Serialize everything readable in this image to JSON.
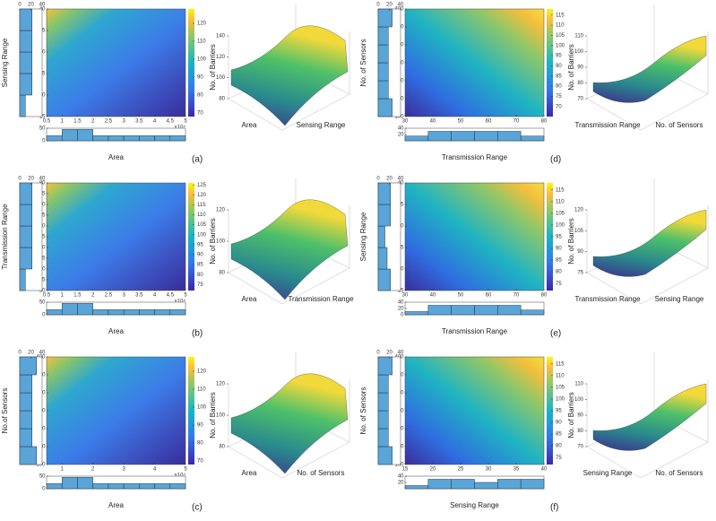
{
  "panels": [
    {
      "letter": "(a)",
      "ylabel": "Sensing Range",
      "xlabel": "Area",
      "xexp": "×10⁴",
      "mode": "tl",
      "xlim": [
        0.5,
        5
      ],
      "xticks": [
        0.5,
        1,
        1.5,
        2,
        2.5,
        3,
        3.5,
        4,
        4.5,
        5
      ],
      "ylim": [
        15,
        40
      ],
      "yticks": [
        15,
        20,
        25,
        30,
        35,
        40
      ],
      "clim": [
        68,
        128
      ],
      "cticks": [
        70,
        80,
        90,
        100,
        110,
        120
      ],
      "lh": {
        "xlim": [
          0,
          40
        ],
        "xticks": [
          0,
          20,
          40
        ],
        "values": [
          10,
          22,
          22,
          22,
          22
        ]
      },
      "bh": {
        "ylim": [
          0,
          50
        ],
        "yticks": [
          0,
          50
        ],
        "values": [
          20,
          45,
          45,
          20,
          20,
          20,
          20,
          20,
          20
        ]
      },
      "surf": {
        "zlabel": "No. of Barriers",
        "xlabel": "Area",
        "ylabel": "Sensing Range",
        "zticks": [
          80,
          100,
          120,
          140
        ]
      }
    },
    {
      "letter": "(b)",
      "ylabel": "Transmission Range",
      "xlabel": "Area",
      "xexp": "×10⁴",
      "mode": "tl",
      "xlim": [
        0.5,
        5
      ],
      "xticks": [
        0.5,
        1,
        1.5,
        2,
        2.5,
        3,
        3.5,
        4,
        4.5,
        5
      ],
      "ylim": [
        30,
        80
      ],
      "yticks": [
        30,
        35,
        40,
        45,
        50,
        55,
        60,
        65,
        70,
        75,
        80
      ],
      "clim": [
        72,
        126
      ],
      "cticks": [
        75,
        80,
        85,
        90,
        95,
        100,
        105,
        110,
        115,
        120,
        125
      ],
      "lh": {
        "xlim": [
          0,
          40
        ],
        "xticks": [
          0,
          20,
          40
        ],
        "values": [
          10,
          22,
          22,
          22,
          22
        ]
      },
      "bh": {
        "ylim": [
          0,
          50
        ],
        "yticks": [
          0,
          50
        ],
        "values": [
          20,
          45,
          45,
          20,
          20,
          20,
          20,
          20,
          20
        ]
      },
      "surf": {
        "zlabel": "No. of Barriers",
        "xlabel": "Area",
        "ylabel": "Transmission Range",
        "zticks": [
          80,
          100,
          120
        ]
      }
    },
    {
      "letter": "(c)",
      "ylabel": "No.of Sensors",
      "xlabel": "Area",
      "xexp": "×10⁴",
      "mode": "tl",
      "xlim": [
        0.5,
        5
      ],
      "xticks": [
        1,
        2,
        3,
        4,
        5
      ],
      "ylim": [
        100,
        400
      ],
      "yticks": [
        100,
        150,
        200,
        250,
        300,
        350,
        400
      ],
      "clim": [
        68,
        128
      ],
      "cticks": [
        70,
        80,
        90,
        100,
        110,
        120
      ],
      "lh": {
        "xlim": [
          0,
          40
        ],
        "xticks": [
          0,
          20,
          40
        ],
        "values": [
          30,
          22,
          22,
          22,
          22,
          30
        ]
      },
      "bh": {
        "ylim": [
          0,
          50
        ],
        "yticks": [
          0,
          50
        ],
        "values": [
          20,
          45,
          45,
          20,
          20,
          20,
          20,
          20,
          20
        ]
      },
      "surf": {
        "zlabel": "No. of Barriers",
        "xlabel": "Area",
        "ylabel": "No. of Sensors",
        "zticks": [
          80,
          100,
          120
        ]
      }
    },
    {
      "letter": "(d)",
      "ylabel": "No. of Sensors",
      "xlabel": "Transmission Range",
      "mode": "tr",
      "xlim": [
        30,
        80
      ],
      "xticks": [
        30,
        40,
        50,
        60,
        70,
        80
      ],
      "ylim": [
        100,
        400
      ],
      "yticks": [
        100,
        150,
        200,
        250,
        300,
        350,
        400
      ],
      "clim": [
        65,
        118
      ],
      "cticks": [
        70,
        75,
        80,
        85,
        90,
        95,
        100,
        105,
        110,
        115
      ],
      "lh": {
        "xlim": [
          0,
          40
        ],
        "xticks": [
          0,
          20,
          40
        ],
        "values": [
          25,
          18,
          18,
          18,
          18,
          25
        ]
      },
      "bh": {
        "ylim": [
          0,
          40
        ],
        "yticks": [
          20,
          40
        ],
        "values": [
          15,
          30,
          30,
          30,
          30,
          15
        ]
      },
      "surf": {
        "zlabel": "No. of Barriers",
        "xlabel": "Transmission Range",
        "ylabel": "No. of Sensors",
        "zticks": [
          70,
          80,
          90,
          100,
          110
        ]
      }
    },
    {
      "letter": "(e)",
      "ylabel": "Sensing Range",
      "xlabel": "Transmission Range",
      "mode": "tr",
      "xlim": [
        30,
        80
      ],
      "xticks": [
        30,
        40,
        50,
        60,
        70,
        80
      ],
      "ylim": [
        15,
        40
      ],
      "yticks": [
        15,
        20,
        25,
        30,
        35,
        40
      ],
      "clim": [
        72,
        118
      ],
      "cticks": [
        75,
        80,
        85,
        90,
        95,
        100,
        105,
        110,
        115
      ],
      "lh": {
        "xlim": [
          0,
          40
        ],
        "xticks": [
          0,
          20,
          40
        ],
        "values": [
          22,
          16,
          12,
          22,
          22
        ]
      },
      "bh": {
        "ylim": [
          0,
          40
        ],
        "yticks": [
          0,
          20,
          40
        ],
        "values": [
          10,
          30,
          30,
          30,
          30,
          15
        ]
      },
      "surf": {
        "zlabel": "No. of Barriers",
        "xlabel": "Transmission Range",
        "ylabel": "Sensing Range",
        "zticks": [
          75,
          90,
          105,
          120
        ]
      }
    },
    {
      "letter": "(f)",
      "ylabel": "No. of Sensors",
      "xlabel": "Sensing Range",
      "mode": "tr",
      "xlim": [
        15,
        40
      ],
      "xticks": [
        15,
        20,
        25,
        30,
        35,
        40
      ],
      "ylim": [
        100,
        400
      ],
      "yticks": [
        100,
        150,
        200,
        250,
        300,
        350,
        400
      ],
      "clim": [
        72,
        118
      ],
      "cticks": [
        75,
        80,
        85,
        90,
        95,
        100,
        105,
        110,
        115
      ],
      "lh": {
        "xlim": [
          0,
          40
        ],
        "xticks": [
          0,
          20,
          40
        ],
        "values": [
          25,
          18,
          18,
          18,
          18,
          25
        ]
      },
      "bh": {
        "ylim": [
          0,
          40
        ],
        "yticks": [
          20,
          40
        ],
        "values": [
          10,
          30,
          30,
          20,
          30,
          30
        ]
      },
      "surf": {
        "zlabel": "No. of Barriers",
        "xlabel": "Sensing Range",
        "ylabel": "No. of Sensors",
        "zticks": [
          70,
          80,
          90,
          100,
          110
        ]
      }
    }
  ]
}
